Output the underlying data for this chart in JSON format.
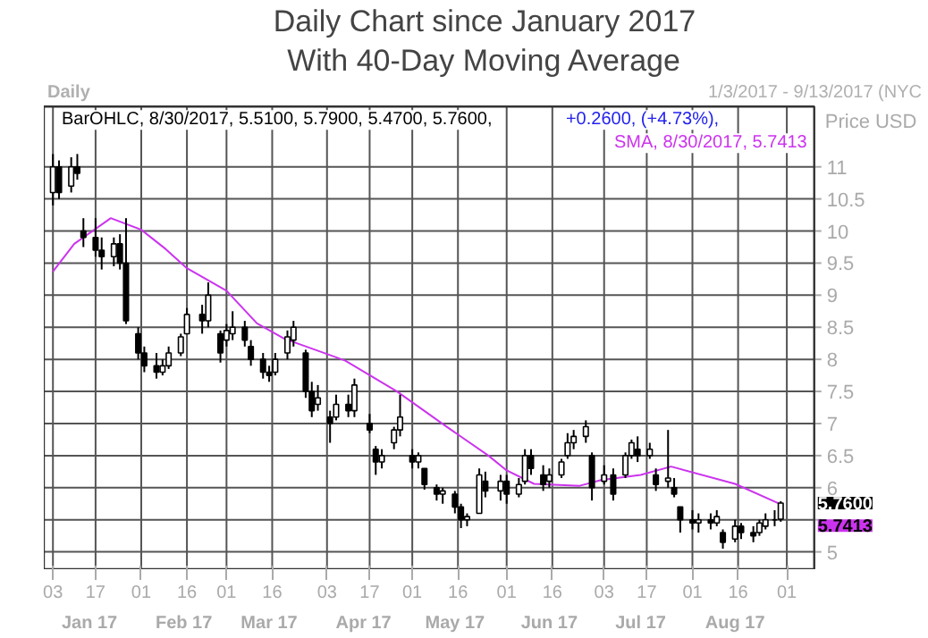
{
  "chart_data": {
    "type": "candlestick",
    "title": "Daily Chart since January 2017",
    "subtitle": "With 40-Day Moving Average",
    "ylabel": "Price USD",
    "annotations": [
      "Daily",
      "1/3/2017 - 9/13/2017 (NYC",
      "BarOHLC, 8/30/2017, 5.5100, 5.7900, 5.4700, 5.7600,",
      "+0.2600, (+4.73%),",
      "SMA, 8/30/2017, 5.7413",
      "5.7600",
      "5.7413",
      "Jan 17",
      "Feb 17",
      "Mar 17",
      "Apr 17",
      "May 17",
      "Jun 17",
      "Jul 17",
      "Aug 17"
    ],
    "x": [
      "2017-01-03",
      "2017-01-05",
      "2017-01-09",
      "2017-01-11",
      "2017-01-13",
      "2017-01-17",
      "2017-01-19",
      "2017-01-23",
      "2017-01-25",
      "2017-01-27",
      "2017-01-31",
      "2017-02-02",
      "2017-02-06",
      "2017-02-08",
      "2017-02-10",
      "2017-02-14",
      "2017-02-16",
      "2017-02-21",
      "2017-02-23",
      "2017-02-27",
      "2017-03-01",
      "2017-03-03",
      "2017-03-07",
      "2017-03-09",
      "2017-03-13",
      "2017-03-15",
      "2017-03-17",
      "2017-03-21",
      "2017-03-23",
      "2017-03-27",
      "2017-03-29",
      "2017-03-31",
      "2017-04-04",
      "2017-04-06",
      "2017-04-10",
      "2017-04-12",
      "2017-04-17",
      "2017-04-19",
      "2017-04-21",
      "2017-04-25",
      "2017-04-27",
      "2017-05-01",
      "2017-05-03",
      "2017-05-05",
      "2017-05-09",
      "2017-05-11",
      "2017-05-15",
      "2017-05-17",
      "2017-05-19",
      "2017-05-23",
      "2017-05-25",
      "2017-05-30",
      "2017-06-01",
      "2017-06-05",
      "2017-06-07",
      "2017-06-09",
      "2017-06-13",
      "2017-06-15",
      "2017-06-19",
      "2017-06-21",
      "2017-06-23",
      "2017-06-27",
      "2017-06-29",
      "2017-07-03",
      "2017-07-06",
      "2017-07-10",
      "2017-07-12",
      "2017-07-14",
      "2017-07-18",
      "2017-07-20",
      "2017-07-24",
      "2017-07-26",
      "2017-07-28",
      "2017-08-01",
      "2017-08-03",
      "2017-08-07",
      "2017-08-09",
      "2017-08-11",
      "2017-08-15",
      "2017-08-17",
      "2017-08-21",
      "2017-08-23",
      "2017-08-25",
      "2017-08-28",
      "2017-08-30"
    ],
    "ohlc": [
      [
        10.6,
        11.2,
        10.4,
        11.0
      ],
      [
        11.0,
        11.1,
        10.5,
        10.6
      ],
      [
        10.7,
        11.15,
        10.6,
        11.0
      ],
      [
        11.0,
        11.2,
        10.8,
        10.9
      ],
      [
        10.0,
        10.2,
        9.75,
        9.9
      ],
      [
        9.9,
        10.2,
        9.6,
        9.7
      ],
      [
        9.7,
        9.9,
        9.4,
        9.6
      ],
      [
        9.6,
        9.9,
        9.45,
        9.8
      ],
      [
        9.8,
        9.95,
        9.4,
        9.5
      ],
      [
        9.5,
        10.2,
        8.55,
        8.6
      ],
      [
        8.4,
        8.5,
        8.0,
        8.1
      ],
      [
        8.1,
        8.2,
        7.8,
        7.9
      ],
      [
        7.9,
        8.1,
        7.7,
        7.8
      ],
      [
        7.8,
        8.0,
        7.75,
        7.9
      ],
      [
        7.9,
        8.2,
        7.85,
        8.1
      ],
      [
        8.1,
        8.4,
        8.05,
        8.35
      ],
      [
        8.4,
        8.8,
        8.4,
        8.7
      ],
      [
        8.7,
        8.85,
        8.4,
        8.6
      ],
      [
        8.6,
        9.2,
        8.5,
        9.0
      ],
      [
        8.4,
        8.45,
        7.95,
        8.1
      ],
      [
        8.3,
        8.55,
        8.2,
        8.45
      ],
      [
        8.4,
        8.75,
        8.3,
        8.5
      ],
      [
        8.5,
        8.6,
        8.2,
        8.3
      ],
      [
        8.2,
        8.3,
        7.9,
        8.0
      ],
      [
        8.0,
        8.1,
        7.7,
        7.8
      ],
      [
        7.8,
        7.9,
        7.65,
        7.75
      ],
      [
        7.8,
        8.1,
        7.75,
        8.0
      ],
      [
        8.1,
        8.45,
        8.0,
        8.35
      ],
      [
        8.3,
        8.6,
        8.2,
        8.5
      ],
      [
        8.1,
        8.15,
        7.4,
        7.5
      ],
      [
        7.5,
        7.65,
        7.1,
        7.2
      ],
      [
        7.3,
        7.6,
        7.2,
        7.4
      ],
      [
        7.1,
        7.2,
        6.7,
        7.0
      ],
      [
        7.1,
        7.45,
        7.05,
        7.3
      ],
      [
        7.3,
        7.45,
        7.1,
        7.2
      ],
      [
        7.2,
        7.7,
        7.1,
        7.6
      ],
      [
        7.0,
        7.15,
        6.85,
        6.9
      ],
      [
        6.6,
        6.65,
        6.2,
        6.4
      ],
      [
        6.4,
        6.6,
        6.3,
        6.5
      ],
      [
        6.7,
        6.95,
        6.6,
        6.9
      ],
      [
        6.9,
        7.45,
        6.8,
        7.1
      ],
      [
        6.5,
        6.6,
        6.3,
        6.4
      ],
      [
        6.4,
        6.55,
        6.3,
        6.5
      ],
      [
        6.3,
        6.3,
        5.97,
        6.05
      ],
      [
        6.0,
        6.05,
        5.8,
        5.9
      ],
      [
        5.9,
        6.0,
        5.75,
        5.95
      ],
      [
        5.9,
        5.95,
        5.6,
        5.7
      ],
      [
        5.7,
        5.75,
        5.37,
        5.5
      ],
      [
        5.5,
        5.6,
        5.4,
        5.55
      ],
      [
        5.6,
        6.3,
        5.6,
        6.2
      ],
      [
        6.1,
        6.25,
        5.85,
        5.95
      ],
      [
        5.95,
        6.2,
        5.8,
        6.1
      ],
      [
        6.1,
        6.2,
        5.75,
        5.9
      ],
      [
        5.9,
        6.15,
        5.85,
        6.05
      ],
      [
        6.1,
        6.6,
        6.05,
        6.5
      ],
      [
        6.5,
        6.6,
        6.2,
        6.3
      ],
      [
        6.2,
        6.35,
        5.95,
        6.05
      ],
      [
        6.1,
        6.3,
        6.0,
        6.2
      ],
      [
        6.2,
        6.45,
        6.15,
        6.4
      ],
      [
        6.5,
        6.85,
        6.45,
        6.7
      ],
      [
        6.7,
        6.9,
        6.6,
        6.8
      ],
      [
        6.8,
        7.05,
        6.7,
        6.95
      ],
      [
        6.5,
        6.55,
        5.8,
        6.0
      ],
      [
        6.1,
        6.35,
        6.05,
        6.2
      ],
      [
        6.2,
        6.3,
        5.8,
        5.9
      ],
      [
        6.2,
        6.55,
        6.15,
        6.5
      ],
      [
        6.5,
        6.75,
        6.45,
        6.7
      ],
      [
        6.6,
        6.8,
        6.4,
        6.5
      ],
      [
        6.5,
        6.7,
        6.45,
        6.6
      ],
      [
        6.2,
        6.3,
        5.95,
        6.05
      ],
      [
        6.1,
        6.9,
        6.0,
        6.15
      ],
      [
        6.0,
        6.15,
        5.85,
        5.9
      ],
      [
        5.7,
        5.7,
        5.3,
        5.5
      ],
      [
        5.5,
        5.65,
        5.35,
        5.45
      ],
      [
        5.45,
        5.6,
        5.3,
        5.5
      ],
      [
        5.5,
        5.6,
        5.35,
        5.45
      ],
      [
        5.45,
        5.65,
        5.4,
        5.55
      ],
      [
        5.3,
        5.35,
        5.05,
        5.15
      ],
      [
        5.2,
        5.5,
        5.15,
        5.4
      ],
      [
        5.4,
        5.45,
        5.2,
        5.3
      ],
      [
        5.3,
        5.4,
        5.15,
        5.25
      ],
      [
        5.3,
        5.5,
        5.25,
        5.45
      ],
      [
        5.4,
        5.6,
        5.35,
        5.5
      ],
      [
        5.5,
        5.65,
        5.4,
        5.5
      ],
      [
        5.51,
        5.79,
        5.47,
        5.76
      ]
    ],
    "series": [
      {
        "type": "line",
        "color": "#cc33ee",
        "x": [
          "2017-01-03",
          "2017-01-10",
          "2017-01-22",
          "2017-02-01",
          "2017-02-09",
          "2017-02-16",
          "2017-03-01",
          "2017-03-11",
          "2017-03-20",
          "2017-04-05",
          "2017-04-09",
          "2017-04-26",
          "2017-05-12",
          "2017-05-26",
          "2017-06-01",
          "2017-06-10",
          "2017-06-25",
          "2017-07-02",
          "2017-07-15",
          "2017-07-25",
          "2017-08-15",
          "2017-08-30"
        ],
        "values": [
          9.37,
          9.8,
          10.2,
          10.02,
          9.72,
          9.42,
          9.07,
          8.56,
          8.32,
          8.05,
          7.98,
          7.5,
          6.96,
          6.5,
          6.27,
          6.06,
          6.03,
          6.12,
          6.2,
          6.33,
          6.06,
          5.7413
        ]
      }
    ],
    "xlim": [
      "2016-12-31",
      "2017-09-10"
    ],
    "ylim": [
      4.73,
      11.94
    ],
    "xticks": [
      {
        "value": "2017-01-03",
        "label": "03"
      },
      {
        "value": "2017-01-17",
        "label": "17"
      },
      {
        "value": "2017-02-01",
        "label": "01"
      },
      {
        "value": "2017-02-16",
        "label": "16"
      },
      {
        "value": "2017-03-01",
        "label": "01"
      },
      {
        "value": "2017-03-16",
        "label": "16"
      },
      {
        "value": "2017-04-03",
        "label": "03"
      },
      {
        "value": "2017-04-17",
        "label": "17"
      },
      {
        "value": "2017-05-01",
        "label": "01"
      },
      {
        "value": "2017-05-16",
        "label": "16"
      },
      {
        "value": "2017-06-01",
        "label": "01"
      },
      {
        "value": "2017-06-16",
        "label": "16"
      },
      {
        "value": "2017-07-03",
        "label": "03"
      },
      {
        "value": "2017-07-17",
        "label": "17"
      },
      {
        "value": "2017-08-01",
        "label": "01"
      },
      {
        "value": "2017-08-16",
        "label": "16"
      },
      {
        "value": "2017-09-01",
        "label": "01"
      }
    ],
    "yticks": [
      5,
      {
        "value": 5.5,
        "label": null
      },
      6,
      6.5,
      7,
      7.5,
      8,
      8.5,
      9,
      9.5,
      10,
      10.5,
      11
    ],
    "grid": true
  }
}
